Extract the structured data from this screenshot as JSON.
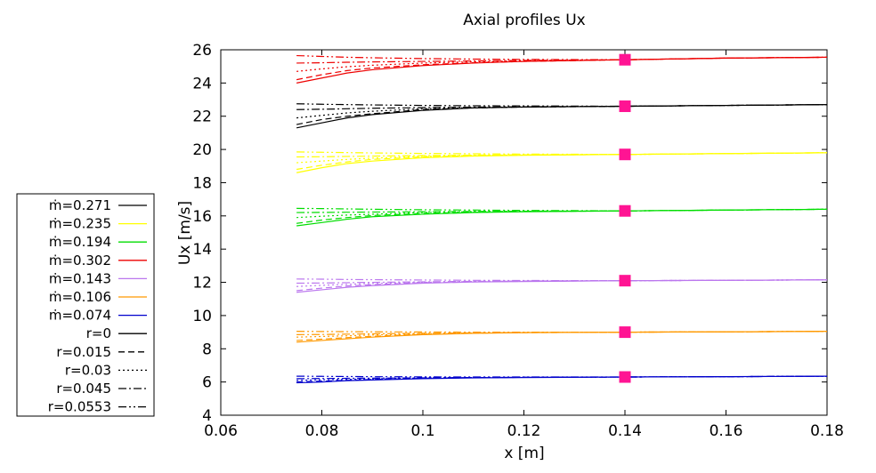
{
  "chart_data": {
    "type": "line",
    "title": "Axial profiles Ux",
    "xlabel": "x [m]",
    "ylabel": "Ux [m/s]",
    "xlim": [
      0.06,
      0.18
    ],
    "ylim": [
      4,
      26
    ],
    "xticks": [
      0.06,
      0.08,
      0.1,
      0.12,
      0.14,
      0.16,
      0.18
    ],
    "yticks": [
      4,
      6,
      8,
      10,
      12,
      14,
      16,
      18,
      20,
      22,
      24,
      26
    ],
    "x_tick_labels": [
      "0.06",
      "0.08",
      "0.1",
      "0.12",
      "0.14",
      "0.16",
      "0.18"
    ],
    "y_tick_labels": [
      "4",
      "6",
      "8",
      "10",
      "12",
      "14",
      "16",
      "18",
      "20",
      "22",
      "24",
      "26"
    ],
    "grid": false,
    "legend_position": "outside-left",
    "x": [
      0.075,
      0.08,
      0.085,
      0.09,
      0.1,
      0.11,
      0.12,
      0.14,
      0.16,
      0.18
    ],
    "mass_flow_groups": [
      {
        "label": "ṁ=0.271",
        "color": "#000000",
        "r0": [
          21.3,
          21.6,
          21.9,
          22.1,
          22.35,
          22.5,
          22.55,
          22.6,
          22.65,
          22.7
        ],
        "r0015": [
          21.5,
          21.8,
          22.0,
          22.15,
          22.4,
          22.5,
          22.55,
          22.6,
          22.65,
          22.7
        ],
        "r003": [
          21.9,
          22.05,
          22.2,
          22.3,
          22.45,
          22.52,
          22.56,
          22.6,
          22.65,
          22.7
        ],
        "r0045": [
          22.4,
          22.42,
          22.45,
          22.48,
          22.52,
          22.55,
          22.57,
          22.6,
          22.65,
          22.7
        ],
        "r00553": [
          22.75,
          22.72,
          22.7,
          22.68,
          22.65,
          22.63,
          22.62,
          22.6,
          22.65,
          22.7
        ]
      },
      {
        "label": "ṁ=0.235",
        "color": "#ffff00",
        "r0": [
          18.6,
          18.9,
          19.15,
          19.3,
          19.5,
          19.6,
          19.65,
          19.7,
          19.75,
          19.8
        ],
        "r0015": [
          18.8,
          19.05,
          19.25,
          19.4,
          19.55,
          19.62,
          19.66,
          19.7,
          19.75,
          19.8
        ],
        "r003": [
          19.2,
          19.3,
          19.4,
          19.48,
          19.58,
          19.64,
          19.67,
          19.7,
          19.75,
          19.8
        ],
        "r0045": [
          19.55,
          19.56,
          19.58,
          19.6,
          19.63,
          19.66,
          19.68,
          19.7,
          19.75,
          19.8
        ],
        "r00553": [
          19.85,
          19.83,
          19.81,
          19.79,
          19.76,
          19.74,
          19.72,
          19.7,
          19.75,
          19.8
        ]
      },
      {
        "label": "ṁ=0.194",
        "color": "#00dd00",
        "r0": [
          15.4,
          15.6,
          15.8,
          15.95,
          16.1,
          16.2,
          16.25,
          16.3,
          16.35,
          16.4
        ],
        "r0015": [
          15.55,
          15.75,
          15.9,
          16.02,
          16.15,
          16.22,
          16.26,
          16.3,
          16.35,
          16.4
        ],
        "r003": [
          15.9,
          15.98,
          16.05,
          16.1,
          16.2,
          16.25,
          16.28,
          16.3,
          16.35,
          16.4
        ],
        "r0045": [
          16.2,
          16.21,
          16.22,
          16.23,
          16.25,
          16.27,
          16.28,
          16.3,
          16.35,
          16.4
        ],
        "r00553": [
          16.45,
          16.44,
          16.42,
          16.4,
          16.37,
          16.35,
          16.33,
          16.3,
          16.35,
          16.4
        ]
      },
      {
        "label": "ṁ=0.302",
        "color": "#ee0000",
        "r0": [
          24.0,
          24.3,
          24.6,
          24.8,
          25.05,
          25.2,
          25.3,
          25.4,
          25.5,
          25.55
        ],
        "r0015": [
          24.2,
          24.5,
          24.75,
          24.9,
          25.1,
          25.22,
          25.3,
          25.4,
          25.5,
          25.55
        ],
        "r003": [
          24.7,
          24.85,
          24.98,
          25.07,
          25.2,
          25.28,
          25.33,
          25.4,
          25.5,
          25.55
        ],
        "r0045": [
          25.2,
          25.22,
          25.25,
          25.27,
          25.3,
          25.33,
          25.36,
          25.4,
          25.5,
          25.55
        ],
        "r00553": [
          25.65,
          25.6,
          25.55,
          25.52,
          25.47,
          25.44,
          25.42,
          25.4,
          25.5,
          25.55
        ]
      },
      {
        "label": "ṁ=0.143",
        "color": "#bb77ee",
        "r0": [
          11.4,
          11.55,
          11.7,
          11.8,
          11.95,
          12.02,
          12.05,
          12.1,
          12.12,
          12.15
        ],
        "r0015": [
          11.5,
          11.65,
          11.78,
          11.86,
          11.98,
          12.03,
          12.06,
          12.1,
          12.12,
          12.15
        ],
        "r003": [
          11.75,
          11.82,
          11.88,
          11.93,
          12.0,
          12.05,
          12.07,
          12.1,
          12.12,
          12.15
        ],
        "r0045": [
          11.95,
          11.96,
          11.98,
          12.0,
          12.03,
          12.06,
          12.08,
          12.1,
          12.12,
          12.15
        ],
        "r00553": [
          12.2,
          12.19,
          12.17,
          12.16,
          12.14,
          12.12,
          12.11,
          12.1,
          12.12,
          12.15
        ]
      },
      {
        "label": "ṁ=0.106",
        "color": "#ff9900",
        "r0": [
          8.4,
          8.5,
          8.6,
          8.7,
          8.85,
          8.93,
          8.97,
          9.0,
          9.02,
          9.05
        ],
        "r0015": [
          8.5,
          8.58,
          8.67,
          8.75,
          8.87,
          8.94,
          8.97,
          9.0,
          9.02,
          9.05
        ],
        "r003": [
          8.7,
          8.74,
          8.78,
          8.83,
          8.9,
          8.95,
          8.98,
          9.0,
          9.02,
          9.05
        ],
        "r0045": [
          8.85,
          8.86,
          8.88,
          8.9,
          8.93,
          8.96,
          8.98,
          9.0,
          9.02,
          9.05
        ],
        "r00553": [
          9.05,
          9.04,
          9.03,
          9.02,
          9.01,
          9.0,
          9.0,
          9.0,
          9.02,
          9.05
        ]
      },
      {
        "label": "ṁ=0.074",
        "color": "#0000cc",
        "r0": [
          5.95,
          6.0,
          6.08,
          6.12,
          6.2,
          6.25,
          6.27,
          6.3,
          6.32,
          6.35
        ],
        "r0015": [
          6.0,
          6.05,
          6.1,
          6.15,
          6.22,
          6.26,
          6.28,
          6.3,
          6.32,
          6.35
        ],
        "r003": [
          6.1,
          6.13,
          6.16,
          6.19,
          6.24,
          6.27,
          6.28,
          6.3,
          6.32,
          6.35
        ],
        "r0045": [
          6.2,
          6.21,
          6.22,
          6.23,
          6.25,
          6.27,
          6.28,
          6.3,
          6.32,
          6.35
        ],
        "r00553": [
          6.35,
          6.34,
          6.33,
          6.32,
          6.31,
          6.3,
          6.3,
          6.3,
          6.32,
          6.35
        ]
      }
    ],
    "radius_styles": [
      {
        "key": "r0",
        "label": "r=0",
        "dash": ""
      },
      {
        "key": "r0015",
        "label": "r=0.015",
        "dash": "7,4"
      },
      {
        "key": "r003",
        "label": "r=0.03",
        "dash": "2,3"
      },
      {
        "key": "r0045",
        "label": "r=0.045",
        "dash": "9,3,2,3"
      },
      {
        "key": "r00553",
        "label": "r=0.0553",
        "dash": "9,3,2,3,2,3"
      }
    ],
    "markers": {
      "color": "#ff1493",
      "x": 0.14,
      "y": [
        25.4,
        22.6,
        19.7,
        16.3,
        12.1,
        9.0,
        6.3
      ]
    }
  }
}
